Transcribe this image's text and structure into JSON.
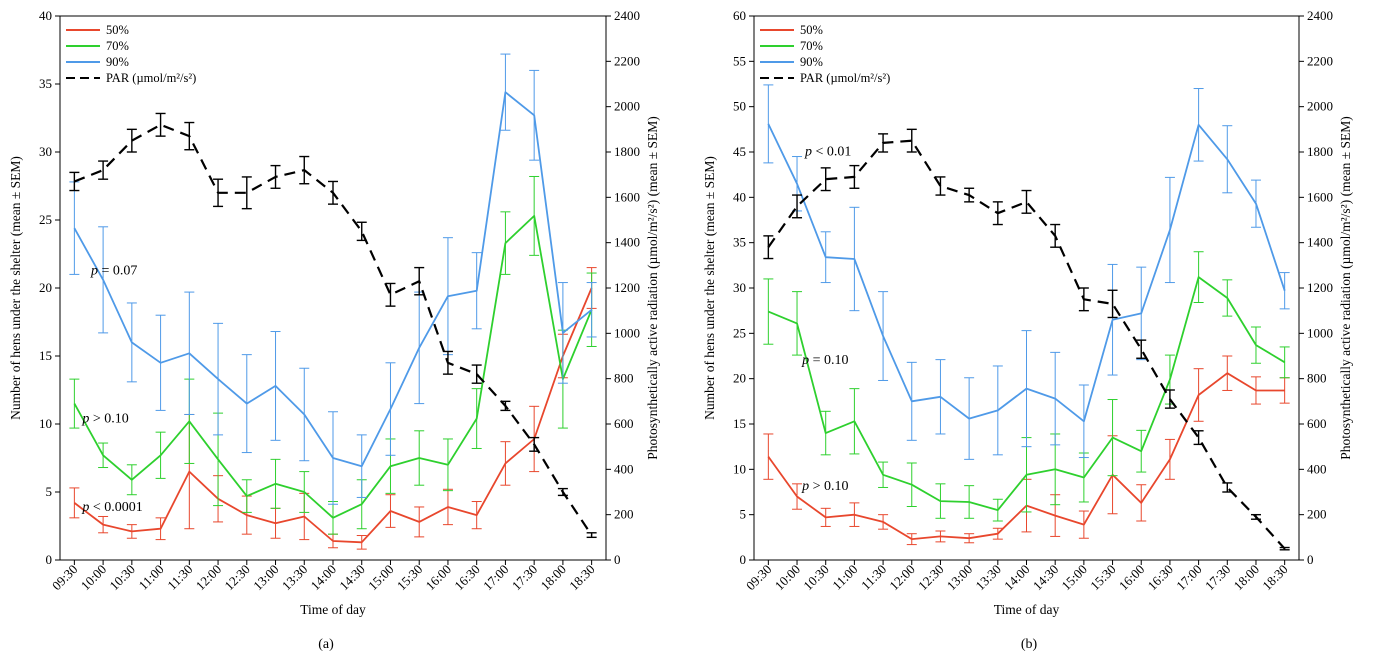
{
  "figure": {
    "panels": [
      {
        "caption": "(a)"
      },
      {
        "caption": "(b)"
      }
    ]
  },
  "chart_data": [
    {
      "type": "line",
      "panel": "(a)",
      "xlabel": "Time of day",
      "ylabel": "Number of hens under the shelter (mean ± SEM)",
      "y2label": "Photosynthetically active radiation (µmol/m²/s²) (mean ± SEM)",
      "categories": [
        "09:30",
        "10:00",
        "10:30",
        "11:00",
        "11:30",
        "12:00",
        "12:30",
        "13:00",
        "13:30",
        "14:00",
        "14:30",
        "15:00",
        "15:30",
        "16:00",
        "16:30",
        "17:00",
        "17:30",
        "18:00",
        "18:30"
      ],
      "ylim": [
        0,
        40
      ],
      "yticks": [
        0,
        5,
        10,
        15,
        20,
        25,
        30,
        35,
        40
      ],
      "y2lim": [
        0,
        2400
      ],
      "y2ticks": [
        0,
        200,
        400,
        600,
        800,
        1000,
        1200,
        1400,
        1600,
        1800,
        2000,
        2200,
        2400
      ],
      "legend_position": "top-left",
      "series": [
        {
          "name": "50%",
          "color": "#e8472d",
          "axis": "left",
          "dash": "solid",
          "values": [
            4.2,
            2.6,
            2.1,
            2.3,
            6.5,
            4.5,
            3.3,
            2.7,
            3.2,
            1.4,
            1.3,
            3.6,
            2.8,
            3.9,
            3.3,
            7.1,
            8.9,
            15.0,
            20.0
          ],
          "errors": [
            1.1,
            0.6,
            0.5,
            0.8,
            4.2,
            1.7,
            1.4,
            1.1,
            1.7,
            0.5,
            0.5,
            1.2,
            1.1,
            1.3,
            1.0,
            1.6,
            2.4,
            1.6,
            1.5
          ]
        },
        {
          "name": "70%",
          "color": "#2ed02e",
          "axis": "left",
          "dash": "solid",
          "values": [
            11.5,
            7.7,
            5.9,
            7.7,
            10.2,
            7.4,
            4.7,
            5.6,
            5.0,
            3.1,
            4.1,
            6.9,
            7.5,
            7.0,
            10.4,
            23.3,
            25.3,
            13.3,
            18.4
          ],
          "errors": [
            1.8,
            0.9,
            1.1,
            1.7,
            3.1,
            3.4,
            1.2,
            1.8,
            1.5,
            1.2,
            1.8,
            2.0,
            2.0,
            1.9,
            2.2,
            2.3,
            2.9,
            3.6,
            2.7
          ]
        },
        {
          "name": "90%",
          "color": "#4f9ae8",
          "axis": "left",
          "dash": "solid",
          "values": [
            24.4,
            20.6,
            16.0,
            14.5,
            15.2,
            13.3,
            11.5,
            12.8,
            10.7,
            7.5,
            6.9,
            11.1,
            15.6,
            19.4,
            19.8,
            34.4,
            32.7,
            16.7,
            18.4
          ],
          "errors": [
            3.4,
            3.9,
            2.9,
            3.5,
            4.5,
            4.1,
            3.6,
            4.0,
            3.4,
            3.4,
            2.3,
            3.4,
            4.1,
            4.3,
            2.8,
            2.8,
            3.3,
            3.7,
            2.0
          ]
        },
        {
          "name": "PAR (µmol/m²/s²)",
          "color": "#000000",
          "axis": "right",
          "dash": "dashed",
          "values": [
            1670,
            1720,
            1850,
            1920,
            1870,
            1620,
            1620,
            1690,
            1720,
            1620,
            1450,
            1170,
            1230,
            870,
            820,
            680,
            510,
            300,
            110
          ],
          "errors": [
            40,
            40,
            50,
            50,
            60,
            60,
            70,
            50,
            60,
            50,
            40,
            50,
            60,
            50,
            40,
            20,
            30,
            15,
            10
          ]
        }
      ],
      "annotations": [
        {
          "label": "p",
          "text": " = 0.07",
          "x_index": 0.8,
          "y": 21.0
        },
        {
          "label": "p",
          "text": " > 0.10",
          "x_index": 0.5,
          "y": 10.1
        },
        {
          "label": "p",
          "text": " < 0.0001",
          "x_index": 0.5,
          "y": 3.6
        }
      ]
    },
    {
      "type": "line",
      "panel": "(b)",
      "xlabel": "Time of day",
      "ylabel": "Number of hens under the shelter (mean ± SEM)",
      "y2label": "Photosynthetically active radiation (µmol/m²/s²) (mean ± SEM)",
      "categories": [
        "09:30",
        "10:00",
        "10:30",
        "11:00",
        "11:30",
        "12:00",
        "12:30",
        "13:00",
        "13:30",
        "14:00",
        "14:30",
        "15:00",
        "15:30",
        "16:00",
        "16:30",
        "17:00",
        "17:30",
        "18:00",
        "18:30"
      ],
      "ylim": [
        0,
        60
      ],
      "yticks": [
        0,
        5,
        10,
        15,
        20,
        25,
        30,
        35,
        40,
        45,
        50,
        55,
        60
      ],
      "y2lim": [
        0,
        2400
      ],
      "y2ticks": [
        0,
        200,
        400,
        600,
        800,
        1000,
        1200,
        1400,
        1600,
        1800,
        2000,
        2200,
        2400
      ],
      "legend_position": "top-left",
      "series": [
        {
          "name": "50%",
          "color": "#e8472d",
          "axis": "left",
          "dash": "solid",
          "values": [
            11.4,
            7.0,
            4.7,
            5.0,
            4.2,
            2.3,
            2.6,
            2.4,
            2.9,
            6.0,
            4.9,
            3.9,
            9.4,
            6.3,
            11.1,
            18.2,
            20.6,
            18.7,
            18.7
          ],
          "errors": [
            2.5,
            1.4,
            1.0,
            1.3,
            0.8,
            0.6,
            0.6,
            0.5,
            0.6,
            2.9,
            2.3,
            1.5,
            4.3,
            2.0,
            2.2,
            2.9,
            1.9,
            1.5,
            1.4
          ]
        },
        {
          "name": "70%",
          "color": "#2ed02e",
          "axis": "left",
          "dash": "solid",
          "values": [
            27.4,
            26.1,
            14.0,
            15.3,
            9.4,
            8.3,
            6.5,
            6.4,
            5.5,
            9.4,
            10.0,
            9.1,
            13.5,
            12.0,
            19.9,
            31.2,
            28.9,
            23.7,
            21.8
          ],
          "errors": [
            3.6,
            3.5,
            2.4,
            3.6,
            1.4,
            2.4,
            1.9,
            1.8,
            1.2,
            4.1,
            3.9,
            2.7,
            4.2,
            2.3,
            2.7,
            2.8,
            2.0,
            2.0,
            1.7
          ]
        },
        {
          "name": "90%",
          "color": "#4f9ae8",
          "axis": "left",
          "dash": "solid",
          "values": [
            48.1,
            41.5,
            33.4,
            33.2,
            24.7,
            17.5,
            18.0,
            15.6,
            16.5,
            18.9,
            17.8,
            15.3,
            26.5,
            27.2,
            36.4,
            48.0,
            44.2,
            39.3,
            29.7
          ],
          "errors": [
            4.3,
            3.0,
            2.8,
            5.7,
            4.9,
            4.3,
            4.1,
            4.5,
            4.9,
            6.4,
            5.1,
            4.0,
            6.1,
            5.1,
            5.8,
            4.0,
            3.7,
            2.6,
            2.0
          ]
        },
        {
          "name": "PAR (µmol/m²/s²)",
          "color": "#000000",
          "axis": "right",
          "dash": "dashed",
          "values": [
            1380,
            1560,
            1680,
            1690,
            1840,
            1850,
            1650,
            1610,
            1530,
            1580,
            1430,
            1150,
            1130,
            930,
            710,
            540,
            320,
            190,
            50
          ],
          "errors": [
            50,
            50,
            50,
            50,
            40,
            50,
            40,
            30,
            50,
            50,
            50,
            50,
            60,
            40,
            40,
            30,
            20,
            10,
            5
          ]
        }
      ],
      "annotations": [
        {
          "label": "p",
          "text": " < 0.01",
          "x_index": 1.5,
          "y": 44.6
        },
        {
          "label": "p",
          "text": " = 0.10",
          "x_index": 1.4,
          "y": 21.6
        },
        {
          "label": "p",
          "text": " > 0.10",
          "x_index": 1.4,
          "y": 7.7
        }
      ]
    }
  ]
}
